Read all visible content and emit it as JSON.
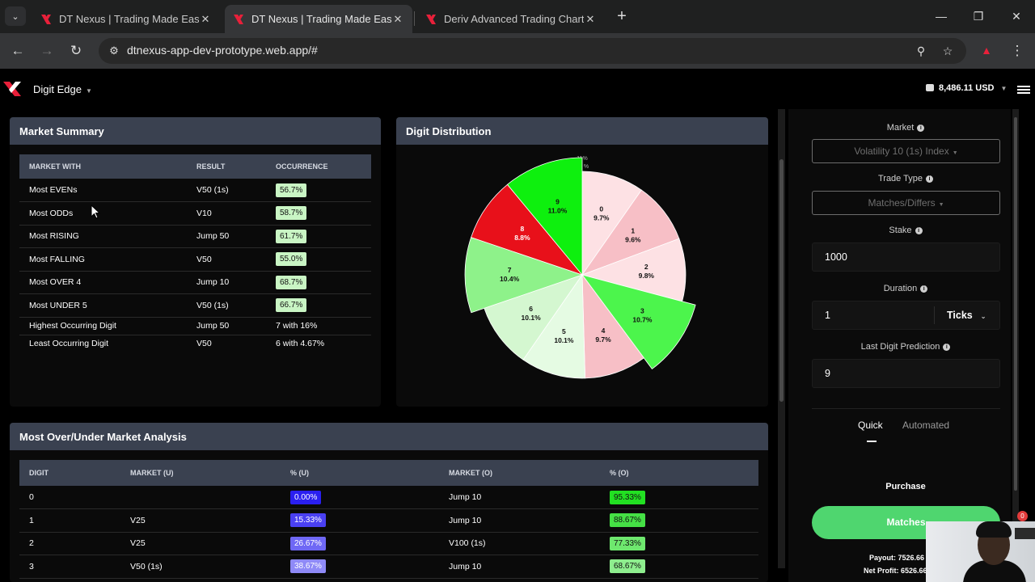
{
  "browser": {
    "tabs": [
      {
        "title": "DT Nexus | Trading Made Easier",
        "active": false
      },
      {
        "title": "DT Nexus | Trading Made Easier",
        "active": true
      },
      {
        "title": "Deriv Advanced Trading Charts",
        "active": false
      }
    ],
    "url": "dtnexus-app-dev-prototype.web.app/#"
  },
  "header": {
    "product": "Digit Edge",
    "balance": "8,486.11 USD"
  },
  "market_summary": {
    "title": "Market Summary",
    "columns": [
      "MARKET WITH",
      "RESULT",
      "OCCURRENCE"
    ],
    "rows": [
      {
        "label": "Most EVENs",
        "result": "V50 (1s)",
        "occurrence": "56.7%"
      },
      {
        "label": "Most ODDs",
        "result": "V10",
        "occurrence": "58.7%"
      },
      {
        "label": "Most RISING",
        "result": "Jump 50",
        "occurrence": "61.7%"
      },
      {
        "label": "Most FALLING",
        "result": "V50",
        "occurrence": "55.0%"
      },
      {
        "label": "Most OVER 4",
        "result": "Jump 10",
        "occurrence": "68.7%"
      },
      {
        "label": "Most UNDER 5",
        "result": "V50 (1s)",
        "occurrence": "66.7%"
      },
      {
        "label": "Highest Occurring Digit",
        "result": "Jump 50",
        "occurrence": "7 with 16%"
      },
      {
        "label": "Least Occurring Digit",
        "result": "V50",
        "occurrence": "6 with 4.67%"
      }
    ]
  },
  "digit_distribution": {
    "title": "Digit Distribution",
    "stray_labels": [
      "11%",
      "%"
    ]
  },
  "chart_data": {
    "type": "pie",
    "title": "Digit Distribution",
    "categories": [
      "0",
      "1",
      "2",
      "3",
      "4",
      "5",
      "6",
      "7",
      "8",
      "9"
    ],
    "values": [
      9.7,
      9.6,
      9.8,
      10.7,
      9.7,
      10.1,
      10.1,
      10.4,
      8.8,
      11.0
    ],
    "labels": [
      "9.7%",
      "9.6%",
      "9.8%",
      "10.7%",
      "9.7%",
      "10.1%",
      "10.1%",
      "10.4%",
      "8.8%",
      "11.0%"
    ],
    "colors": [
      "#fde1e4",
      "#f7bfc6",
      "#fde1e4",
      "#4cf54c",
      "#f7bfc6",
      "#e5fbe3",
      "#d4f7d0",
      "#8ef28a",
      "#e8101a",
      "#0ef00e"
    ],
    "highlighted": [
      "3",
      "7",
      "8",
      "9"
    ]
  },
  "over_under": {
    "title": "Most Over/Under Market Analysis",
    "columns": [
      "DIGIT",
      "MARKET (U)",
      "% (U)",
      "MARKET (O)",
      "% (O)"
    ],
    "rows": [
      {
        "digit": "0",
        "market_u": "",
        "pct_u": "0.00%",
        "market_o": "Jump 10",
        "pct_o": "95.33%"
      },
      {
        "digit": "1",
        "market_u": "V25",
        "pct_u": "15.33%",
        "market_o": "Jump 10",
        "pct_o": "88.67%"
      },
      {
        "digit": "2",
        "market_u": "V25",
        "pct_u": "26.67%",
        "market_o": "V100 (1s)",
        "pct_o": "77.33%"
      },
      {
        "digit": "3",
        "market_u": "V50 (1s)",
        "pct_u": "38.67%",
        "market_o": "Jump 10",
        "pct_o": "68.67%"
      }
    ],
    "u_colors": [
      "#2a1ff0",
      "#4a40f2",
      "#6f68f5",
      "#8f8af7"
    ],
    "o_colors": [
      "#22e022",
      "#45e045",
      "#6ee86e",
      "#8eee8e"
    ]
  },
  "trade_form": {
    "market_label": "Market",
    "market_value": "Volatility 10 (1s) Index",
    "trade_type_label": "Trade Type",
    "trade_type_value": "Matches/Differs",
    "stake_label": "Stake",
    "stake_value": "1000",
    "duration_label": "Duration",
    "duration_value": "1",
    "duration_unit": "Ticks",
    "prediction_label": "Last Digit Prediction",
    "prediction_value": "9",
    "modes": [
      "Quick",
      "Automated"
    ],
    "active_mode": "Quick",
    "purchase_label": "Purchase",
    "button_label": "Matches",
    "payout_label": "Payout:",
    "payout_value": "7526.66",
    "net_profit_label": "Net Profit:",
    "net_profit_value": "6526.66",
    "notification_count": "0"
  }
}
